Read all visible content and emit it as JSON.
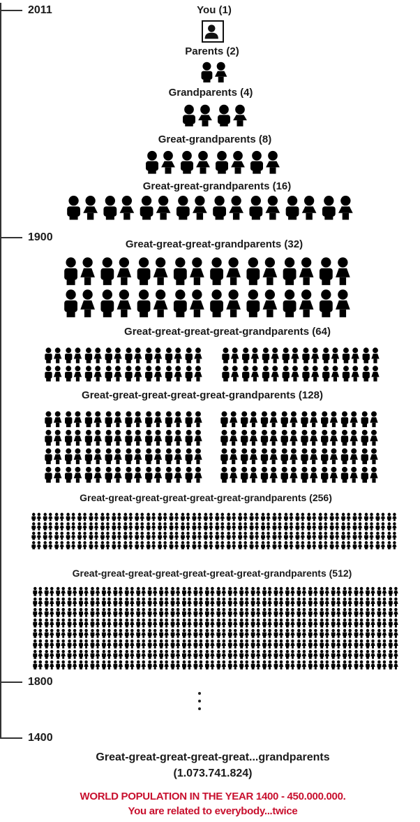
{
  "timeline": {
    "years": [
      "2011",
      "1900",
      "1800",
      "1400"
    ]
  },
  "generations": [
    {
      "label": "You (1)",
      "count": 1
    },
    {
      "label": "Parents (2)",
      "count": 2
    },
    {
      "label": "Grandparents (4)",
      "count": 4
    },
    {
      "label": "Great-grandparents (8)",
      "count": 8
    },
    {
      "label": "Great-great-grandparents (16)",
      "count": 16
    },
    {
      "label": "Great-great-great-grandparents (32)",
      "count": 32
    },
    {
      "label": "Great-great-great-great-grandparents (64)",
      "count": 64
    },
    {
      "label": "Great-great-great-great-great-grandparents (128)",
      "count": 128
    },
    {
      "label": "Great-great-great-great-great-great-grandparents (256)",
      "count": 256
    },
    {
      "label": "Great-great-great-great-great-great-great-grandparents (512)",
      "count": 512
    }
  ],
  "final": {
    "label": "Great-great-great-great-great...grandparents",
    "count": "(1.073.741.824)"
  },
  "note": {
    "line1": "WORLD POPULATION IN THE YEAR 1400 - 450.000.000.",
    "line2": "You are related to everybody...twice",
    "color": "#c8102e"
  },
  "icons": {
    "person": "person-silhouette-icon",
    "male": "male-figure-icon",
    "female": "female-figure-icon"
  }
}
